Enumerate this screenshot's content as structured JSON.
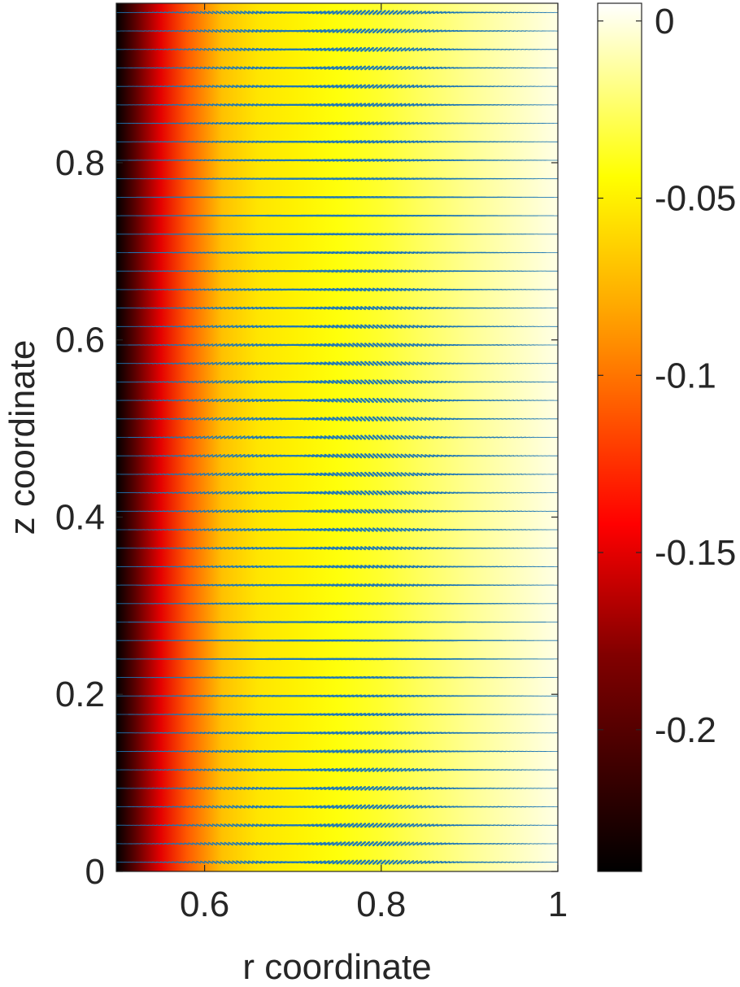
{
  "chart_data": {
    "type": "heatmap",
    "overlay": "quiver",
    "title": "",
    "xlabel": "r coordinate",
    "ylabel": "z coordinate",
    "xlim": [
      0.5,
      1.0
    ],
    "ylim": [
      0,
      0.98
    ],
    "xticks": [
      0.6,
      0.8,
      1.0
    ],
    "xtick_labels": [
      "0.6",
      "0.8",
      "1"
    ],
    "yticks": [
      0,
      0.2,
      0.4,
      0.6,
      0.8
    ],
    "ytick_labels": [
      "0",
      "0.2",
      "0.4",
      "0.6",
      "0.8"
    ],
    "colormap": "hot",
    "clim": [
      -0.24,
      0.005
    ],
    "colorbar_ticks": [
      0,
      -0.05,
      -0.1,
      -0.15,
      -0.2
    ],
    "colorbar_tick_labels": [
      "0",
      "-0.05",
      "-0.1",
      "-0.15",
      "-0.2"
    ],
    "field_profile": {
      "r": [
        0.5,
        0.52,
        0.55,
        0.58,
        0.62,
        0.66,
        0.7,
        0.75,
        0.8,
        0.85,
        0.9,
        0.95,
        1.0
      ],
      "value": [
        -0.24,
        -0.2,
        -0.15,
        -0.11,
        -0.07,
        -0.055,
        -0.05,
        -0.042,
        -0.035,
        -0.025,
        -0.016,
        -0.008,
        0.0
      ]
    },
    "quiver_color": "#1f77b4",
    "grid": false,
    "colorbar_location": "right"
  }
}
